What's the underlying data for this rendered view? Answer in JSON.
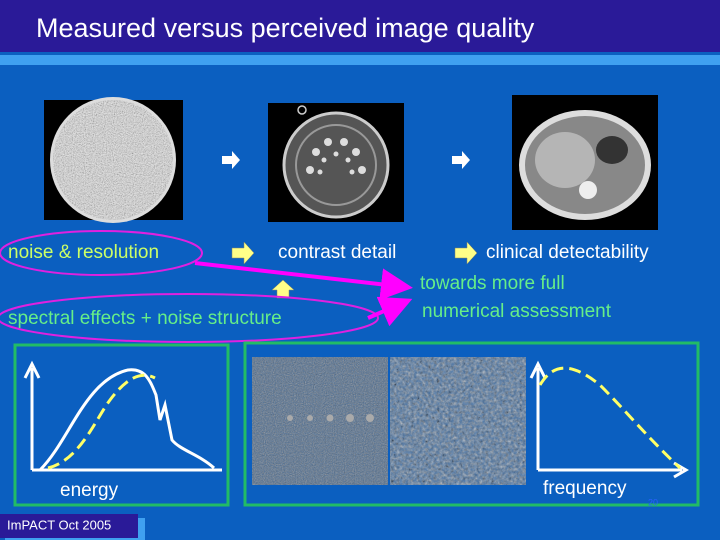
{
  "slide": {
    "title": "Measured versus perceived image quality",
    "steps": [
      "noise & resolution",
      "contrast detail",
      "clinical detectability"
    ],
    "note": [
      "towards more full",
      "numerical assessment"
    ],
    "secondary": "spectral effects + noise structure",
    "graph_labels": [
      "energy",
      "frequency"
    ],
    "page_number": "20",
    "footer": "ImPACT Oct 2005"
  }
}
